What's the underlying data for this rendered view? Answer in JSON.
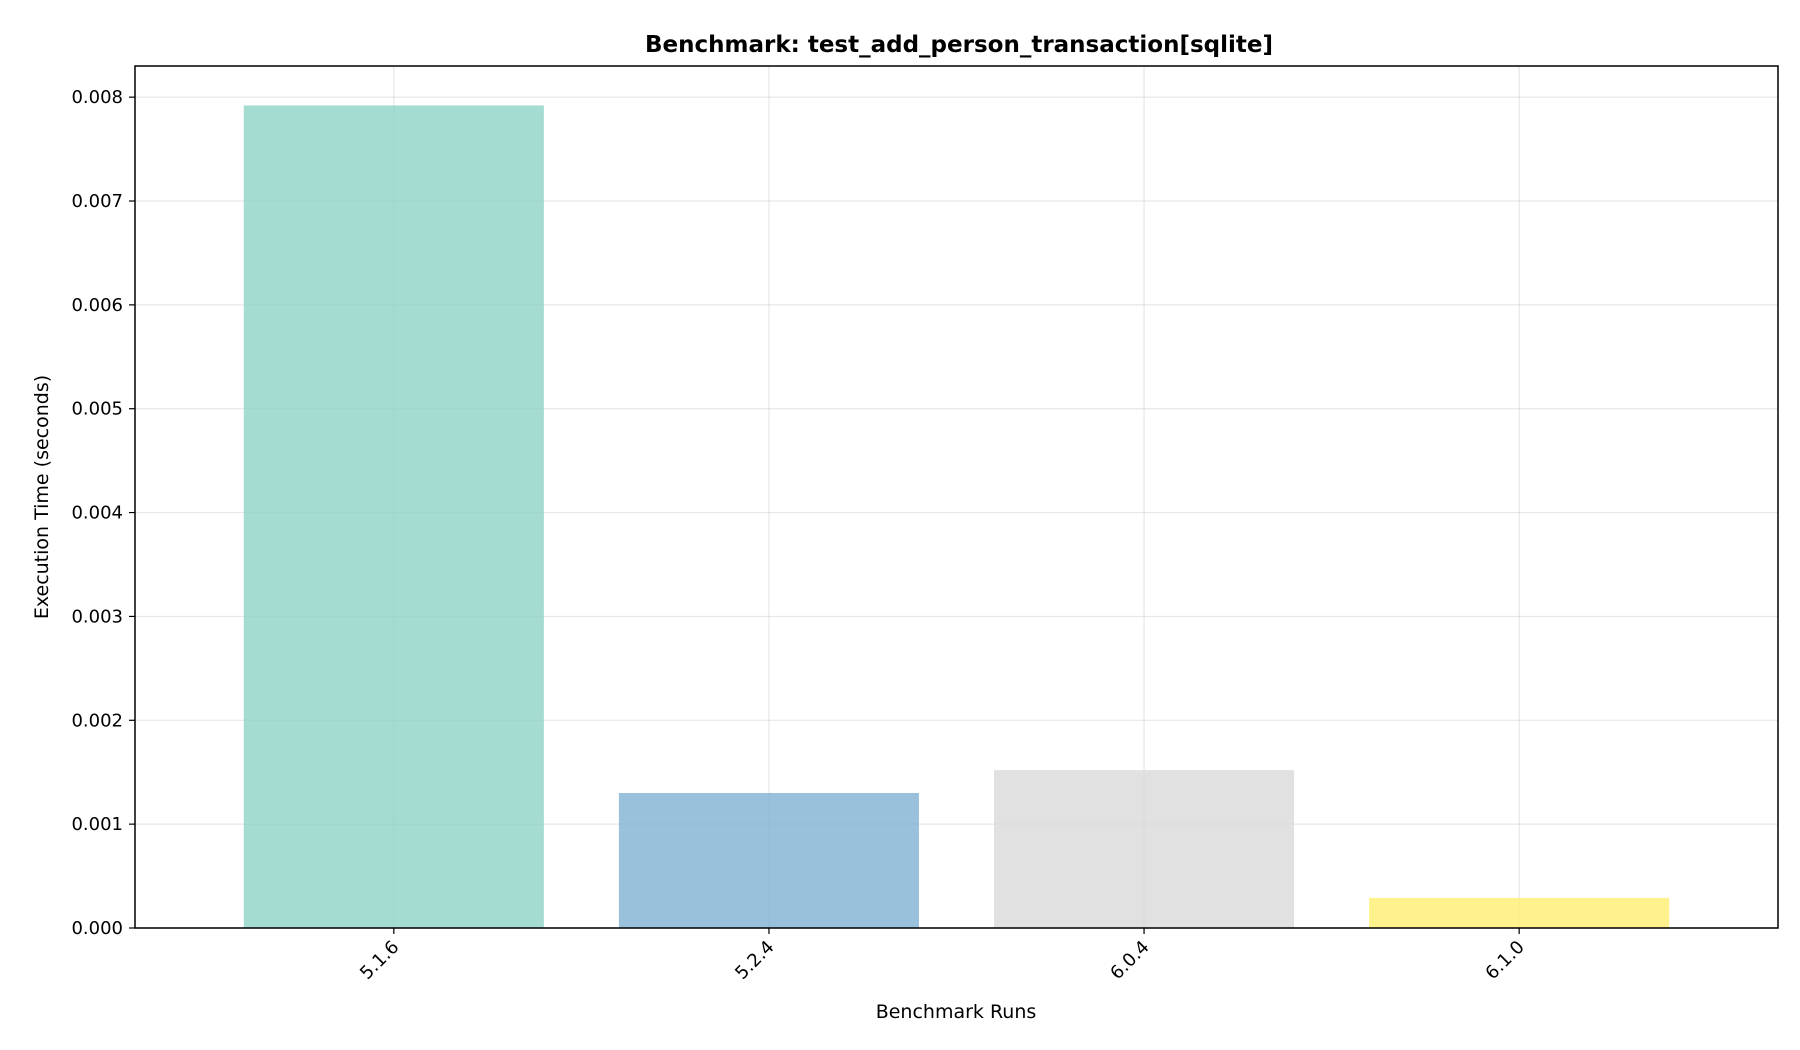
{
  "chart_data": {
    "type": "bar",
    "title": "Benchmark: test_add_person_transaction[sqlite]",
    "xlabel": "Benchmark Runs",
    "ylabel": "Execution Time (seconds)",
    "categories": [
      "5.1.6",
      "5.2.4",
      "6.0.4",
      "6.1.0"
    ],
    "values": [
      0.00792,
      0.0013,
      0.00152,
      0.00029
    ],
    "colors": [
      "#8dd3c7",
      "#80b1d3",
      "#d9d9d9",
      "#ffed6f"
    ],
    "bar_opacity": 0.8,
    "ylim": [
      0,
      0.0083
    ],
    "yticks": [
      0.0,
      0.001,
      0.002,
      0.003,
      0.004,
      0.005,
      0.006,
      0.007,
      0.008
    ],
    "ytick_labels": [
      "0.000",
      "0.001",
      "0.002",
      "0.003",
      "0.004",
      "0.005",
      "0.006",
      "0.007",
      "0.008"
    ],
    "grid": true,
    "xtick_rotation": "45"
  }
}
